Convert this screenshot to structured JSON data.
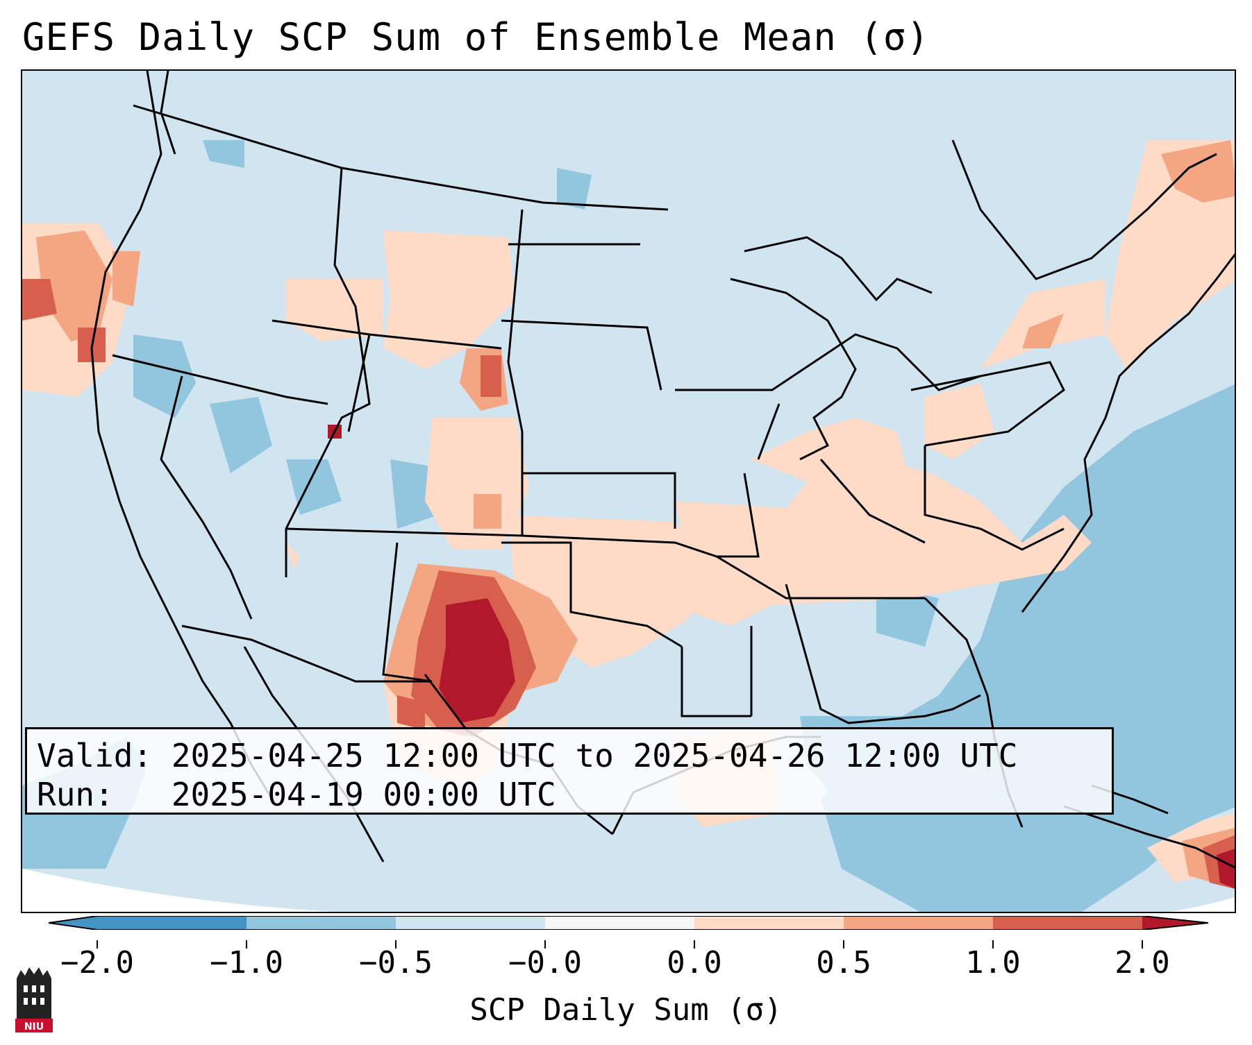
{
  "title": "GEFS Daily SCP Sum of Ensemble Mean (σ)",
  "info": {
    "valid_line": "Valid: 2025-04-25 12:00 UTC to 2025-04-26 12:00 UTC",
    "run_line": "Run:   2025-04-19 00:00 UTC"
  },
  "colorbar": {
    "label": "SCP Daily Sum (σ)",
    "ticks": [
      "−2.0",
      "−1.0",
      "−0.5",
      "−0.0",
      "0.0",
      "0.5",
      "1.0",
      "2.0"
    ],
    "colors": [
      "#4393c3",
      "#92c5de",
      "#d1e5f0",
      "#f7f7f7",
      "#fddbc7",
      "#f4a582",
      "#d6604d",
      "#b2182b"
    ]
  },
  "logo": {
    "icon": "niu-logo-icon",
    "text": "NIU"
  },
  "colors": {
    "background": "#d1e5f0",
    "strong_negative": "#92c5de",
    "weak_positive": "#fddbc7",
    "moderate_positive": "#f4a582",
    "strong_positive": "#d6604d",
    "max_positive": "#b2182b"
  }
}
